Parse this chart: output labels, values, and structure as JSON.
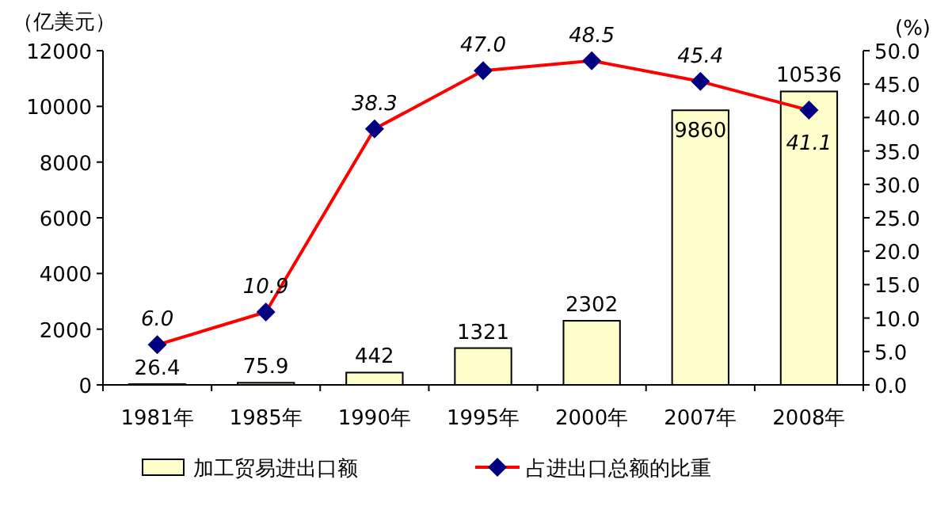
{
  "chart_data": {
    "type": "bar",
    "ylabel": "（亿美元）",
    "y2label": "(%)",
    "categories": [
      "1981年",
      "1985年",
      "1990年",
      "1995年",
      "2000年",
      "2007年",
      "2008年"
    ],
    "series": [
      {
        "name": "加工贸易进出口额",
        "color": "#ffffcc",
        "values": [
          26.4,
          75.9,
          442,
          1321,
          2302,
          9860,
          10536
        ]
      },
      {
        "name": "占进出口总额的比重",
        "type": "line",
        "axis": "y2",
        "color": "#ff0000",
        "values": [
          6.0,
          10.9,
          38.3,
          47.0,
          48.5,
          45.4,
          41.1
        ],
        "value_labels": [
          "6.0",
          "10.9",
          "38.3",
          "47.0",
          "48.5",
          "45.4",
          "41.1"
        ]
      }
    ],
    "ylim": [
      0,
      12000
    ],
    "yticks": [
      0,
      2000,
      4000,
      6000,
      8000,
      10000,
      12000
    ],
    "y2lim": [
      0,
      50
    ],
    "y2ticks": [
      {
        "value": 0,
        "label": "0.0"
      },
      {
        "value": 5,
        "label": "5.0"
      },
      {
        "value": 10,
        "label": "10.0"
      },
      {
        "value": 15,
        "label": "15.0"
      },
      {
        "value": 20,
        "label": "20.0"
      },
      {
        "value": 25,
        "label": "25.0"
      },
      {
        "value": 30,
        "label": "30.0"
      },
      {
        "value": 35,
        "label": "35.0"
      },
      {
        "value": 40,
        "label": "40.0"
      },
      {
        "value": 45,
        "label": "45.0"
      },
      {
        "value": 50,
        "label": "50.0"
      }
    ],
    "data_labels": true,
    "legend": "bottom",
    "marker": "diamond",
    "grid": false
  }
}
